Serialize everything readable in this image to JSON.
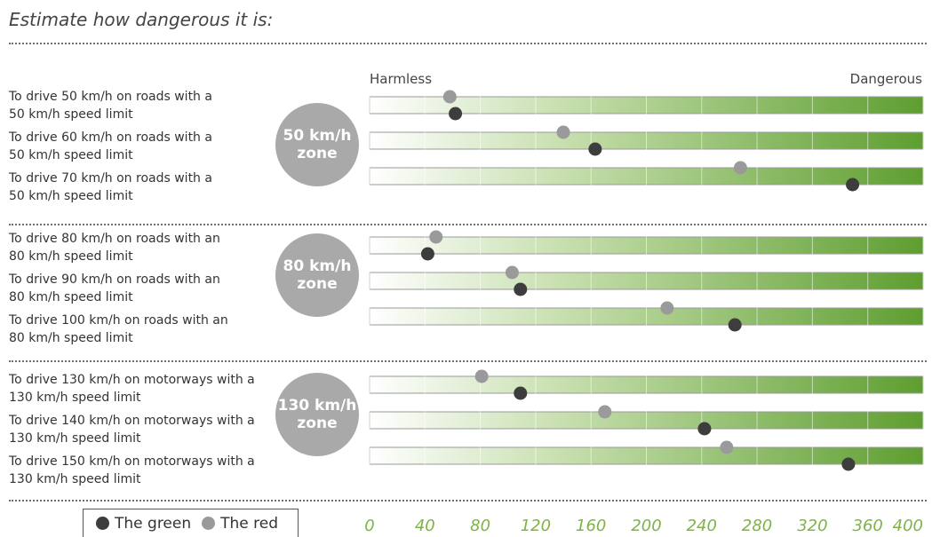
{
  "title": "Estimate how dangerous it is:",
  "scale": {
    "min_label": "Harmless",
    "max_label": "Dangerous"
  },
  "legend": {
    "green_label": "The green",
    "red_label": "The red"
  },
  "colors": {
    "green_dot": "#3d3d3d",
    "red_dot": "#9a9a9a",
    "bar_start": "#ffffff",
    "bar_end": "#5e9e30",
    "tick_text": "#7fb347",
    "zone_circle": "#a9a9a9"
  },
  "zones": [
    {
      "label_line1": "50 km/h",
      "label_line2": "zone"
    },
    {
      "label_line1": "80 km/h",
      "label_line2": "zone"
    },
    {
      "label_line1": "130 km/h",
      "label_line2": "zone"
    }
  ],
  "rows": [
    {
      "line1": "To drive 50 km/h on roads with a",
      "line2": "50 km/h speed limit"
    },
    {
      "line1": "To drive 60 km/h on roads with a",
      "line2": "50 km/h speed limit"
    },
    {
      "line1": "To drive 70 km/h on roads with a",
      "line2": "50 km/h speed limit"
    },
    {
      "line1": "To drive 80 km/h on roads with an",
      "line2": "80 km/h speed limit"
    },
    {
      "line1": "To drive 90 km/h on roads with an",
      "line2": "80 km/h speed limit"
    },
    {
      "line1": "To drive 100 km/h on roads with an",
      "line2": "80 km/h speed limit"
    },
    {
      "line1": "To drive 130 km/h on motorways with a",
      "line2": "130 km/h speed limit"
    },
    {
      "line1": "To drive 140 km/h on motorways with a",
      "line2": "130 km/h speed limit"
    },
    {
      "line1": "To drive 150 km/h on motorways with a",
      "line2": "130 km/h speed limit"
    }
  ],
  "chart_data": {
    "type": "scatter",
    "xlim": [
      0,
      400
    ],
    "xticks": [
      "0",
      "40",
      "80",
      "120",
      "160",
      "200",
      "240",
      "280",
      "320",
      "360",
      "400"
    ],
    "series": [
      {
        "name": "The green",
        "values": [
          62,
          163,
          349,
          42,
          109,
          264,
          109,
          242,
          346
        ]
      },
      {
        "name": "The red",
        "values": [
          58,
          140,
          268,
          48,
          103,
          215,
          81,
          170,
          258
        ]
      }
    ]
  }
}
